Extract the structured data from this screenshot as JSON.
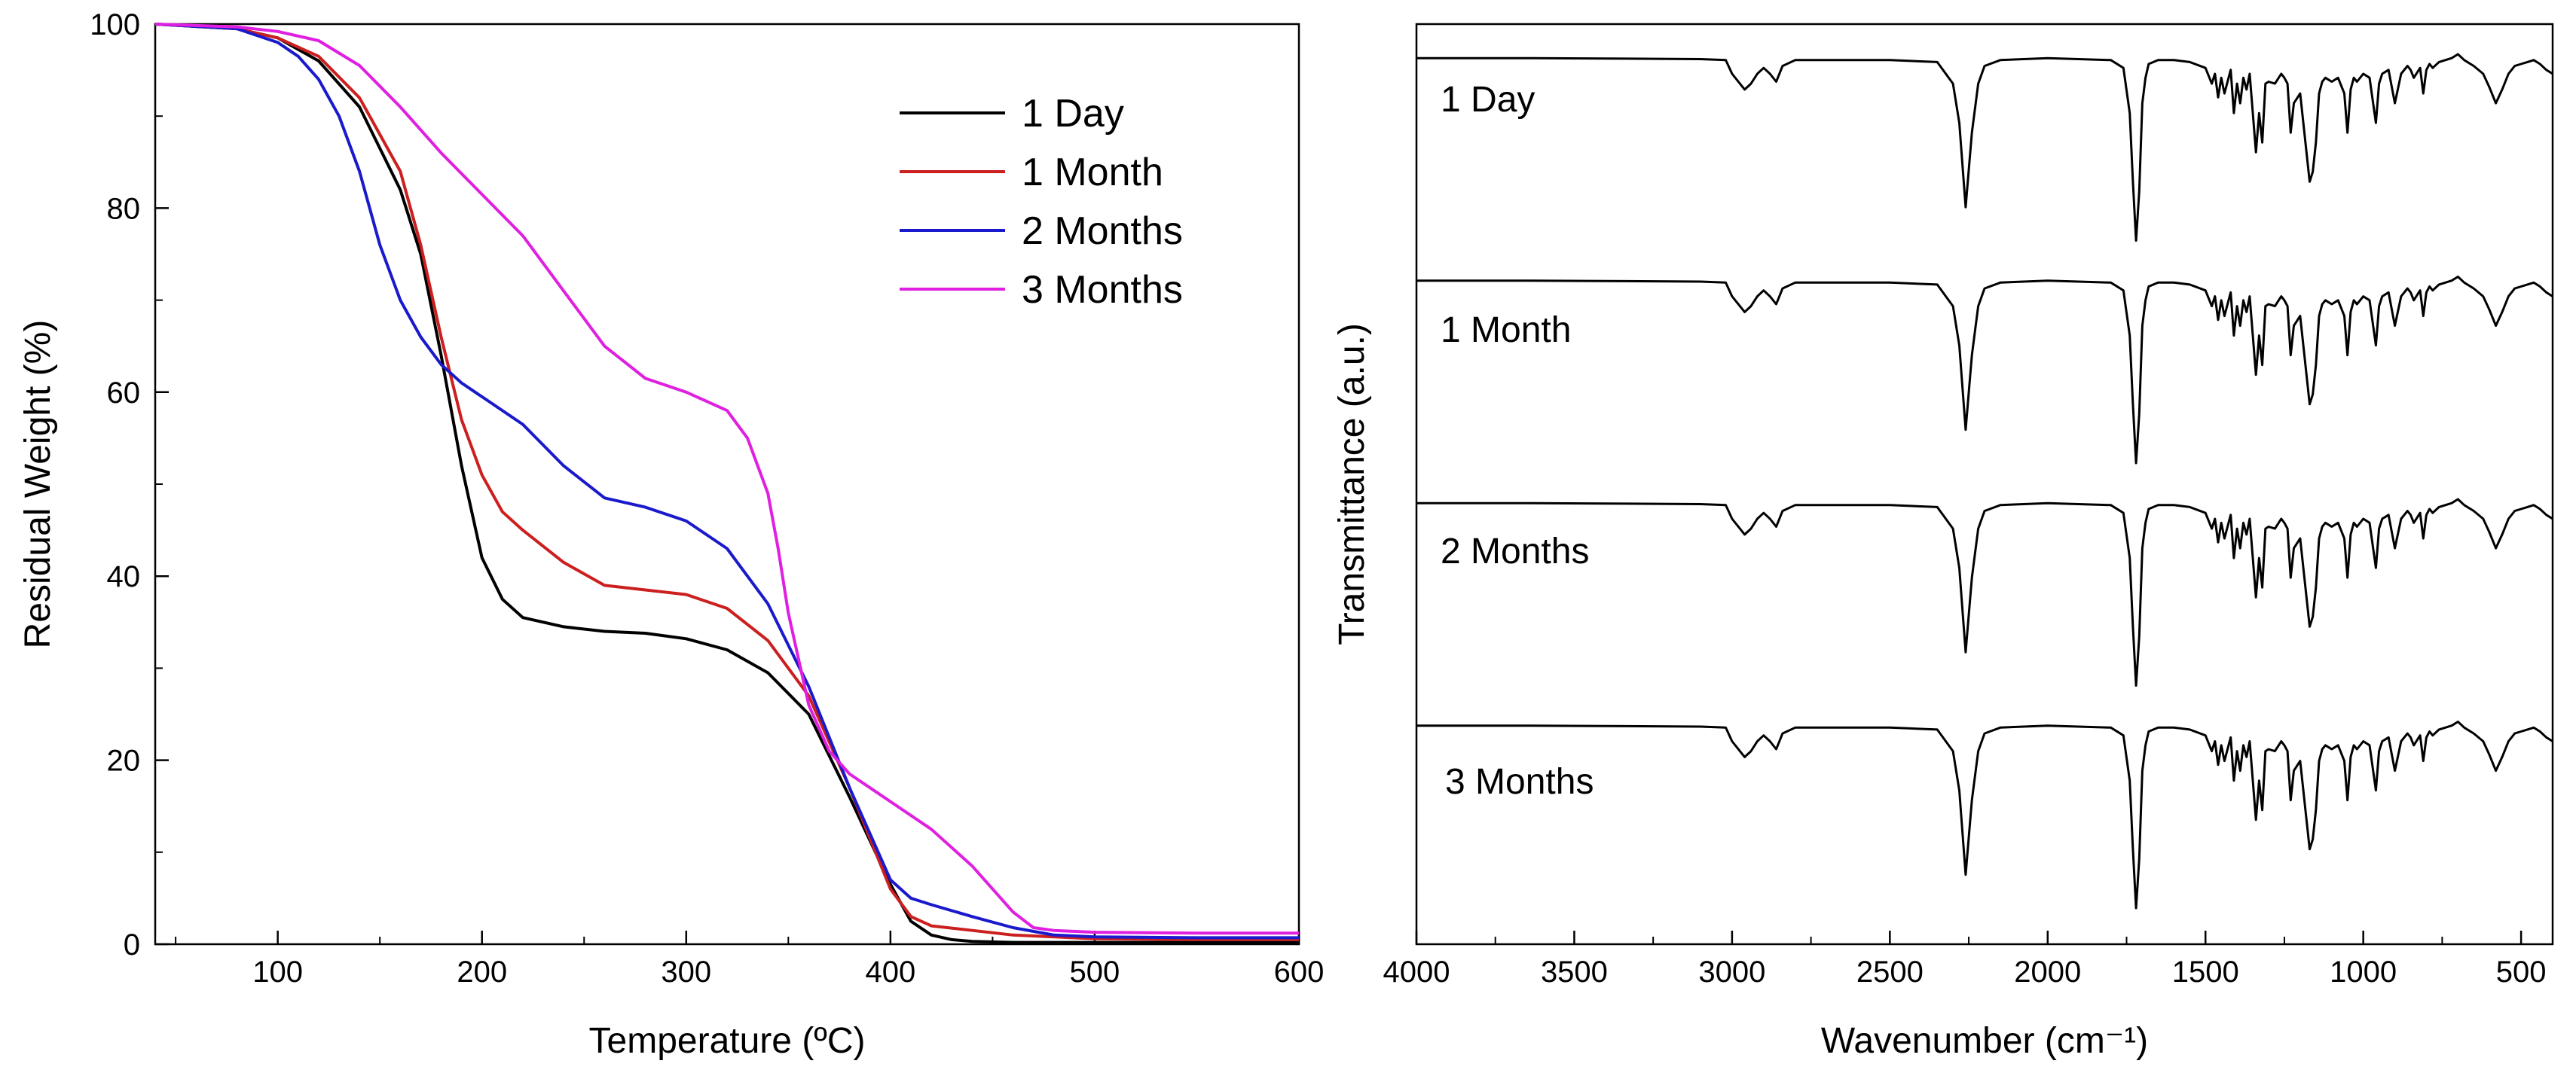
{
  "chart_data": [
    {
      "type": "line",
      "xlabel": "Temperature (ºC)",
      "ylabel": "Residual Weight (%)",
      "xlim": [
        40,
        600
      ],
      "ylim": [
        0,
        100
      ],
      "x_ticks": [
        100,
        200,
        300,
        400,
        500,
        600
      ],
      "x_tick_labels": [
        "100",
        "200",
        "300",
        "400",
        "500",
        "600"
      ],
      "y_ticks": [
        0,
        20,
        40,
        60,
        80,
        100
      ],
      "y_tick_labels": [
        "0",
        "20",
        "40",
        "60",
        "80",
        "100"
      ],
      "grid": false,
      "legend_position": "top-right",
      "series": [
        {
          "name": "1 Day",
          "color": "#000000",
          "x": [
            40,
            80,
            100,
            120,
            140,
            160,
            170,
            180,
            190,
            200,
            210,
            220,
            240,
            260,
            280,
            300,
            320,
            340,
            360,
            380,
            400,
            410,
            420,
            430,
            440,
            460,
            500,
            550,
            600
          ],
          "y": [
            100,
            99.5,
            98.5,
            96,
            91,
            82,
            75,
            64,
            52,
            42,
            37.5,
            35.5,
            34.5,
            34,
            33.8,
            33.2,
            32,
            29.5,
            25,
            16,
            6.5,
            2.5,
            1,
            0.5,
            0.3,
            0.2,
            0.2,
            0.2,
            0.2
          ]
        },
        {
          "name": "1 Month",
          "color": "#cc1f1f",
          "x": [
            40,
            80,
            100,
            120,
            140,
            160,
            170,
            180,
            190,
            200,
            210,
            220,
            240,
            260,
            280,
            300,
            320,
            340,
            360,
            380,
            400,
            410,
            420,
            440,
            460,
            500,
            550,
            600
          ],
          "y": [
            100,
            99.5,
            98.5,
            96.5,
            92,
            84,
            76,
            66,
            57,
            51,
            47,
            45,
            41.5,
            39,
            38.5,
            38,
            36.5,
            33,
            27,
            17,
            6,
            3,
            2,
            1.5,
            1,
            0.6,
            0.5,
            0.5
          ]
        },
        {
          "name": "2 Months",
          "color": "#1a1acc",
          "x": [
            40,
            80,
            100,
            110,
            120,
            130,
            140,
            150,
            160,
            170,
            180,
            190,
            200,
            220,
            240,
            260,
            280,
            300,
            320,
            340,
            360,
            380,
            400,
            410,
            420,
            440,
            460,
            480,
            500,
            550,
            600
          ],
          "y": [
            100,
            99.5,
            98,
            96.5,
            94,
            90,
            84,
            76,
            70,
            66,
            63,
            61,
            59.5,
            56.5,
            52,
            48.5,
            47.5,
            46,
            43,
            37,
            28,
            17,
            7,
            5,
            4.3,
            3,
            1.8,
            1,
            0.8,
            0.7,
            0.7
          ]
        },
        {
          "name": "3 Months",
          "color": "#e020e0",
          "x": [
            40,
            80,
            100,
            120,
            140,
            160,
            180,
            200,
            220,
            240,
            260,
            280,
            300,
            320,
            330,
            340,
            345,
            350,
            360,
            370,
            380,
            400,
            420,
            440,
            460,
            470,
            480,
            500,
            550,
            600
          ],
          "y": [
            100,
            99.7,
            99.2,
            98.2,
            95.5,
            91,
            86,
            81.5,
            77,
            71,
            65,
            61.5,
            60,
            58,
            55,
            49,
            43,
            36,
            26,
            21,
            18.5,
            15.5,
            12.5,
            8.5,
            3.5,
            1.8,
            1.5,
            1.3,
            1.2,
            1.2
          ]
        }
      ]
    },
    {
      "type": "line",
      "xlabel": "Wavenumber (cm⁻¹)",
      "ylabel": "Transmittance (a.u.)",
      "xlim": [
        4000,
        400
      ],
      "x_reversed": true,
      "x_ticks": [
        4000,
        3500,
        3000,
        2500,
        2000,
        1500,
        1000,
        500
      ],
      "x_tick_labels": [
        "4000",
        "3500",
        "3000",
        "2500",
        "2000",
        "1500",
        "1000",
        "500"
      ],
      "y_ticks_shown": false,
      "grid": false,
      "series": [
        {
          "name": "1 Day",
          "color": "#000000",
          "offset": 3
        },
        {
          "name": "1 Month",
          "color": "#000000",
          "offset": 2
        },
        {
          "name": "2 Months",
          "color": "#000000",
          "offset": 1
        },
        {
          "name": "3 Months",
          "color": "#000000",
          "offset": 0
        }
      ],
      "spectrum_shape": {
        "x": [
          4000,
          3700,
          3400,
          3100,
          3020,
          3000,
          2960,
          2940,
          2920,
          2900,
          2880,
          2860,
          2840,
          2800,
          2500,
          2350,
          2300,
          2280,
          2260,
          2240,
          2220,
          2200,
          2150,
          2000,
          1800,
          1760,
          1740,
          1730,
          1720,
          1710,
          1700,
          1690,
          1680,
          1650,
          1600,
          1550,
          1500,
          1480,
          1470,
          1460,
          1450,
          1440,
          1420,
          1410,
          1400,
          1390,
          1380,
          1370,
          1360,
          1340,
          1330,
          1320,
          1310,
          1300,
          1280,
          1260,
          1250,
          1240,
          1230,
          1220,
          1200,
          1180,
          1170,
          1160,
          1150,
          1140,
          1130,
          1120,
          1100,
          1080,
          1060,
          1050,
          1040,
          1030,
          1020,
          1000,
          980,
          960,
          950,
          940,
          920,
          900,
          880,
          860,
          850,
          840,
          820,
          810,
          800,
          790,
          780,
          760,
          740,
          720,
          700,
          680,
          650,
          620,
          600,
          580,
          560,
          540,
          520,
          500,
          480,
          460,
          440,
          420,
          400
        ],
        "y": [
          0.98,
          0.98,
          0.978,
          0.975,
          0.97,
          0.9,
          0.82,
          0.85,
          0.9,
          0.93,
          0.9,
          0.86,
          0.94,
          0.97,
          0.97,
          0.96,
          0.85,
          0.65,
          0.22,
          0.6,
          0.85,
          0.94,
          0.97,
          0.98,
          0.97,
          0.93,
          0.7,
          0.35,
          0.05,
          0.3,
          0.75,
          0.88,
          0.95,
          0.97,
          0.97,
          0.96,
          0.93,
          0.85,
          0.9,
          0.78,
          0.88,
          0.8,
          0.92,
          0.7,
          0.85,
          0.75,
          0.88,
          0.82,
          0.9,
          0.5,
          0.7,
          0.55,
          0.85,
          0.86,
          0.85,
          0.9,
          0.88,
          0.85,
          0.6,
          0.75,
          0.8,
          0.5,
          0.35,
          0.4,
          0.55,
          0.8,
          0.86,
          0.88,
          0.86,
          0.88,
          0.8,
          0.6,
          0.82,
          0.88,
          0.86,
          0.9,
          0.88,
          0.65,
          0.85,
          0.9,
          0.92,
          0.75,
          0.9,
          0.94,
          0.92,
          0.88,
          0.93,
          0.8,
          0.92,
          0.95,
          0.93,
          0.96,
          0.97,
          0.98,
          1.0,
          0.97,
          0.94,
          0.9,
          0.83,
          0.75,
          0.82,
          0.9,
          0.94,
          0.95,
          0.96,
          0.97,
          0.95,
          0.92,
          0.9
        ]
      }
    }
  ]
}
